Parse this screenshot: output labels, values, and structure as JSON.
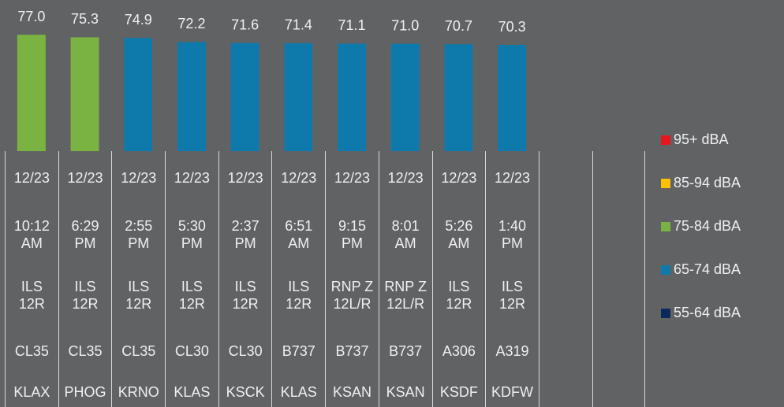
{
  "chart_data": {
    "type": "bar",
    "values": [
      77.0,
      75.3,
      74.9,
      72.2,
      71.6,
      71.4,
      71.1,
      71.0,
      70.7,
      70.3
    ],
    "value_labels": [
      "77.0",
      "75.3",
      "74.9",
      "72.2",
      "71.6",
      "71.4",
      "71.1",
      "71.0",
      "70.7",
      "70.3"
    ],
    "colors": [
      "#7ab342",
      "#7ab342",
      "#0e7aab",
      "#0e7aab",
      "#0e7aab",
      "#0e7aab",
      "#0e7aab",
      "#0e7aab",
      "#0e7aab",
      "#0e7aab"
    ],
    "ylim": [
      0,
      100
    ],
    "table_rows": [
      [
        "12/23",
        "12/23",
        "12/23",
        "12/23",
        "12/23",
        "12/23",
        "12/23",
        "12/23",
        "12/23",
        "12/23"
      ],
      [
        "10:12 AM",
        "6:29 PM",
        "2:55 PM",
        "5:30 PM",
        "2:37 PM",
        "6:51 AM",
        "9:15 PM",
        "8:01 AM",
        "5:26 AM",
        "1:40 PM"
      ],
      [
        "ILS 12R",
        "ILS 12R",
        "ILS 12R",
        "ILS 12R",
        "ILS 12R",
        "ILS 12R",
        "RNP Z 12L/R",
        "RNP Z 12L/R",
        "ILS 12R",
        "ILS 12R"
      ],
      [
        "CL35",
        "CL35",
        "CL35",
        "CL30",
        "CL30",
        "B737",
        "B737",
        "B737",
        "A306",
        "A319"
      ],
      [
        "KLAX",
        "PHOG",
        "KRNO",
        "KLAS",
        "KSCK",
        "KLAS",
        "KSAN",
        "KSAN",
        "KSDF",
        "KDFW"
      ]
    ],
    "legend": [
      {
        "name": "95+ dBA",
        "color": "#e8161f"
      },
      {
        "name": "85-94 dBA",
        "color": "#ffc000"
      },
      {
        "name": "75-84 dBA",
        "color": "#7ab342"
      },
      {
        "name": "65-74 dBA",
        "color": "#0e7aab"
      },
      {
        "name": "55-64 dBA",
        "color": "#0b2a5c"
      }
    ]
  }
}
